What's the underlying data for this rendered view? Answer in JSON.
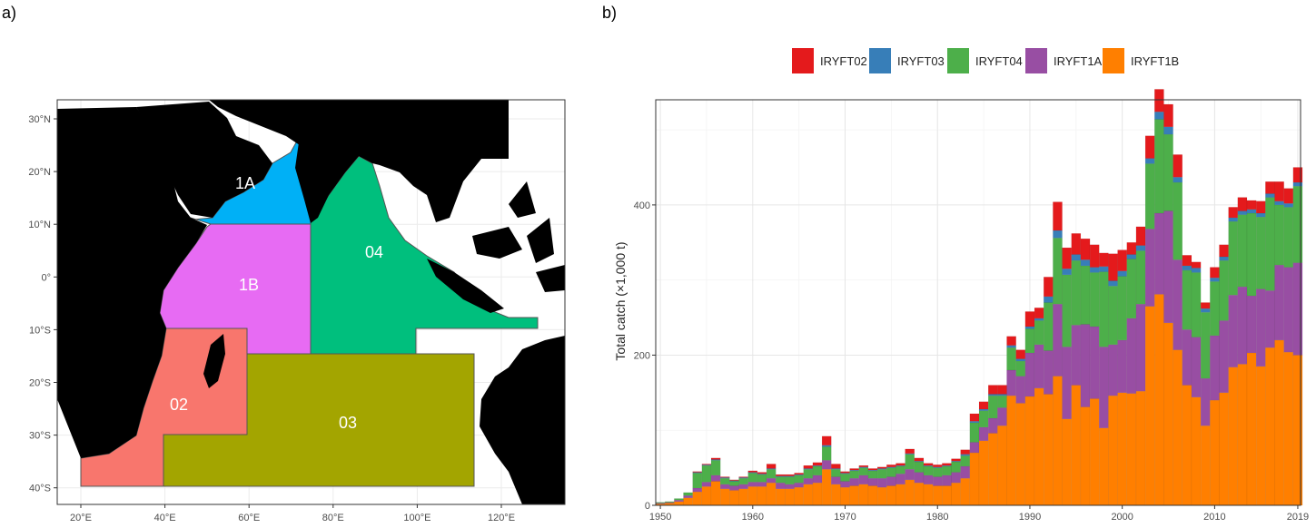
{
  "panels": {
    "a_label": "a)",
    "b_label": "b)"
  },
  "map": {
    "regions": [
      {
        "code": "1A",
        "color": "#00b0f6"
      },
      {
        "code": "1B",
        "color": "#e76bf3"
      },
      {
        "code": "04",
        "color": "#00bf7d"
      },
      {
        "code": "02",
        "color": "#f8766d"
      },
      {
        "code": "03",
        "color": "#a3a500"
      }
    ],
    "lat_ticks": [
      "30°N",
      "20°N",
      "10°N",
      "0°",
      "10°S",
      "20°S",
      "30°S",
      "40°S"
    ],
    "lon_ticks": [
      "20°E",
      "40°E",
      "60°E",
      "80°E",
      "100°E",
      "120°E"
    ]
  },
  "chart_data": {
    "type": "bar",
    "stacked": true,
    "ylabel": "Total catch (×1,000 t)",
    "ylim": [
      0,
      540
    ],
    "xlim": [
      1949.5,
      2019.3
    ],
    "x_ticks": [
      "1950",
      "1960",
      "1970",
      "1980",
      "1990",
      "2000",
      "2010",
      "2019"
    ],
    "y_ticks": [
      "0",
      "200",
      "400"
    ],
    "legend_position": "top",
    "colors": {
      "IRYFT02": "#e41a1c",
      "IRYFT03": "#377eb8",
      "IRYFT04": "#4daf4a",
      "IRYFT1A": "#984ea3",
      "IRYFT1B": "#ff7f00"
    },
    "x": [
      1950,
      1951,
      1952,
      1953,
      1954,
      1955,
      1956,
      1957,
      1958,
      1959,
      1960,
      1961,
      1962,
      1963,
      1964,
      1965,
      1966,
      1967,
      1968,
      1969,
      1970,
      1971,
      1972,
      1973,
      1974,
      1975,
      1976,
      1977,
      1978,
      1979,
      1980,
      1981,
      1982,
      1983,
      1984,
      1985,
      1986,
      1987,
      1988,
      1989,
      1990,
      1991,
      1992,
      1993,
      1994,
      1995,
      1996,
      1997,
      1998,
      1999,
      2000,
      2001,
      2002,
      2003,
      2004,
      2005,
      2006,
      2007,
      2008,
      2009,
      2010,
      2011,
      2012,
      2013,
      2014,
      2015,
      2016,
      2017,
      2018,
      2019
    ],
    "series": [
      {
        "name": "IRYFT1B",
        "values": [
          2,
          3,
          5,
          10,
          18,
          25,
          32,
          22,
          20,
          22,
          25,
          25,
          30,
          22,
          22,
          24,
          28,
          30,
          48,
          28,
          24,
          26,
          28,
          26,
          24,
          26,
          28,
          34,
          30,
          28,
          26,
          26,
          30,
          36,
          70,
          86,
          96,
          106,
          146,
          136,
          145,
          156,
          148,
          172,
          115,
          160,
          131,
          142,
          103,
          146,
          150,
          149,
          152,
          265,
          281,
          243,
          207,
          160,
          144,
          106,
          140,
          150,
          184,
          188,
          203,
          185,
          210,
          220,
          204,
          200
        ]
      },
      {
        "name": "IRYFT1A",
        "values": [
          1,
          1,
          2,
          3,
          5,
          6,
          8,
          6,
          6,
          6,
          6,
          6,
          6,
          8,
          6,
          6,
          8,
          10,
          12,
          10,
          8,
          10,
          12,
          10,
          12,
          12,
          14,
          14,
          14,
          12,
          12,
          14,
          14,
          16,
          14,
          18,
          20,
          24,
          34,
          36,
          58,
          58,
          58,
          96,
          96,
          80,
          110,
          96,
          108,
          68,
          70,
          100,
          116,
          103,
          108,
          149,
          120,
          74,
          80,
          63,
          86,
          96,
          96,
          103,
          76,
          103,
          76,
          100,
          113,
          123
        ]
      },
      {
        "name": "IRYFT04",
        "values": [
          1,
          1,
          2,
          4,
          20,
          22,
          20,
          8,
          6,
          8,
          12,
          10,
          12,
          8,
          10,
          10,
          12,
          12,
          18,
          10,
          10,
          10,
          10,
          10,
          12,
          12,
          10,
          20,
          14,
          12,
          12,
          12,
          14,
          14,
          26,
          22,
          30,
          16,
          30,
          20,
          32,
          32,
          64,
          88,
          96,
          86,
          78,
          72,
          100,
          78,
          85,
          79,
          71,
          87,
          125,
          102,
          103,
          79,
          86,
          88,
          72,
          80,
          98,
          96,
          110,
          96,
          124,
          80,
          80,
          102
        ]
      },
      {
        "name": "IRYFT03",
        "values": [
          0,
          0,
          0,
          0,
          1,
          1,
          1,
          1,
          1,
          1,
          1,
          1,
          1,
          1,
          1,
          1,
          1,
          1,
          2,
          1,
          1,
          1,
          1,
          1,
          1,
          1,
          1,
          1,
          1,
          1,
          1,
          1,
          1,
          2,
          2,
          2,
          2,
          2,
          3,
          3,
          3,
          3,
          8,
          10,
          8,
          8,
          8,
          7,
          7,
          7,
          7,
          6,
          7,
          7,
          10,
          10,
          7,
          6,
          6,
          5,
          5,
          5,
          5,
          5,
          5,
          5,
          5,
          5,
          5,
          5
        ]
      },
      {
        "name": "IRYFT02",
        "values": [
          0,
          0,
          0,
          0,
          1,
          1,
          2,
          1,
          1,
          1,
          2,
          2,
          6,
          2,
          2,
          2,
          4,
          4,
          12,
          6,
          2,
          2,
          2,
          2,
          2,
          3,
          3,
          6,
          4,
          3,
          3,
          3,
          3,
          6,
          10,
          10,
          12,
          12,
          12,
          12,
          20,
          14,
          26,
          38,
          28,
          28,
          28,
          30,
          18,
          36,
          28,
          16,
          25,
          30,
          30,
          30,
          30,
          14,
          8,
          8,
          14,
          16,
          14,
          18,
          12,
          16,
          16,
          26,
          20,
          20
        ]
      }
    ]
  }
}
